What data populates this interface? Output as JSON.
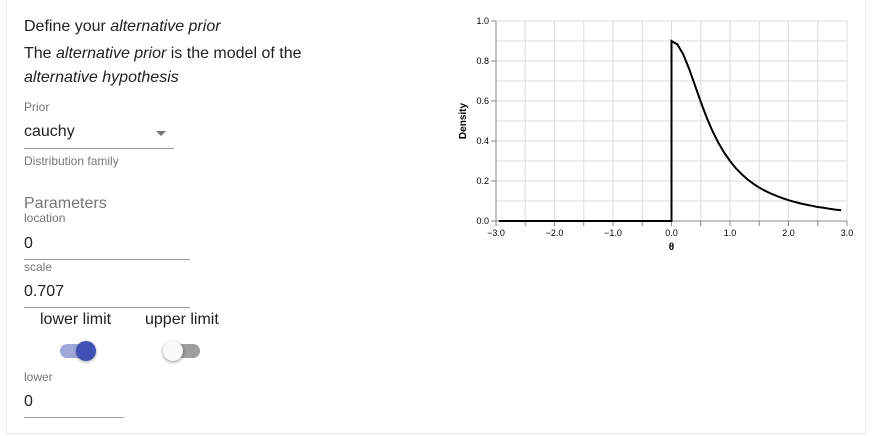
{
  "form": {
    "heading_prefix": "Define your ",
    "heading_em": "alternative prior",
    "intro_part1": "The ",
    "intro_em1": "alternative prior",
    "intro_part2": " is the model of the",
    "intro_em2": "alternative hypothesis",
    "prior_label": "Prior",
    "prior_value": "cauchy",
    "prior_helper": "Distribution family",
    "parameters_title": "Parameters",
    "location_label": "location",
    "location_value": "0",
    "scale_label": "scale",
    "scale_value": "0.707",
    "lower_limit_label": "lower limit",
    "upper_limit_label": "upper limit",
    "lower_limit_on": true,
    "upper_limit_on": false,
    "lower_label": "lower",
    "lower_value": "0"
  },
  "colors": {
    "switch_on_thumb": "#3f51b5",
    "switch_on_track": "#9fa8da",
    "switch_off_thumb": "#fafafa",
    "switch_off_track": "#9e9e9e"
  },
  "chart_data": {
    "type": "line",
    "title": "",
    "xlabel": "θ",
    "ylabel": "Density",
    "xlim": [
      -3.0,
      3.0
    ],
    "ylim": [
      0.0,
      1.0
    ],
    "xticks": [
      -3.0,
      -2.0,
      -1.0,
      0.0,
      1.0,
      2.0,
      3.0
    ],
    "xtick_labels": [
      "−3.0",
      "−2.0",
      "−1.0",
      "0.0",
      "1.0",
      "2.0",
      "3.0"
    ],
    "yticks": [
      0.0,
      0.2,
      0.4,
      0.6,
      0.8,
      1.0
    ],
    "ytick_labels": [
      "0.0",
      "0.2",
      "0.4",
      "0.6",
      "0.8",
      "1.0"
    ],
    "grid": true,
    "series": [
      {
        "x": [
          -2.95,
          -0.05,
          0.0,
          0.0,
          0.1,
          0.2,
          0.3,
          0.4,
          0.5,
          0.6,
          0.7,
          0.8,
          0.9,
          1.0,
          1.1,
          1.2,
          1.3,
          1.4,
          1.5,
          1.6,
          1.7,
          1.8,
          1.9,
          2.0,
          2.1,
          2.2,
          2.3,
          2.4,
          2.5,
          2.6,
          2.7,
          2.8,
          2.9
        ],
        "y": [
          0.0,
          0.0,
          0.0,
          0.9,
          0.883,
          0.834,
          0.762,
          0.679,
          0.596,
          0.518,
          0.45,
          0.392,
          0.342,
          0.3,
          0.264,
          0.234,
          0.208,
          0.186,
          0.167,
          0.151,
          0.137,
          0.125,
          0.114,
          0.104,
          0.096,
          0.088,
          0.082,
          0.076,
          0.07,
          0.066,
          0.061,
          0.057,
          0.054
        ]
      }
    ]
  }
}
